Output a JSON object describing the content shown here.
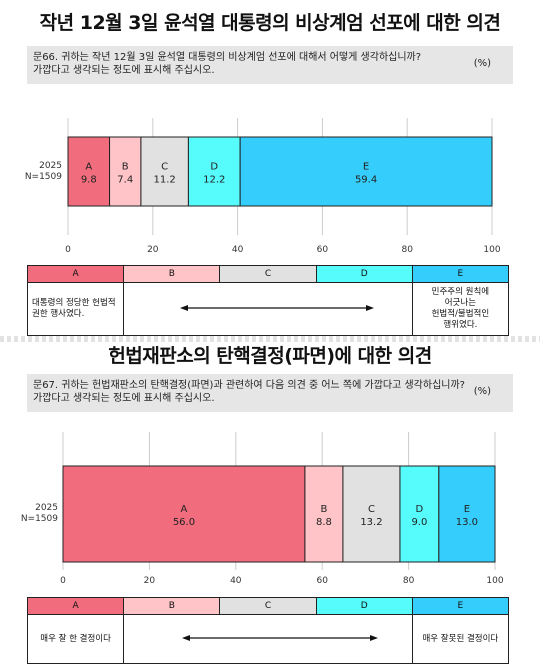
{
  "chart_data": [
    {
      "type": "bar",
      "orientation": "horizontal-stacked",
      "title": "작년 12월 3일 윤석열 대통령의 비상계엄 선포에 대한 의견",
      "question": [
        "문66. 귀하는 작년 12월 3일 윤석열 대통령의 비상계엄 선포에 대해서 어떻게 생각하십니까?",
        "가깝다고 생각되는 정도에 표시해 주십시오."
      ],
      "unit": "(%)",
      "row_label": [
        "2025",
        "N=1509"
      ],
      "xlim": [
        0,
        100
      ],
      "xticks": [
        "0",
        "20",
        "40",
        "60",
        "80",
        "100"
      ],
      "segments": [
        {
          "name": "A",
          "value": 9.8,
          "label": "9.8",
          "color": "#f16d7d"
        },
        {
          "name": "B",
          "value": 7.4,
          "label": "7.4",
          "color": "#ffc4c7"
        },
        {
          "name": "C",
          "value": 11.2,
          "label": "11.2",
          "color": "#e1e1e1"
        },
        {
          "name": "D",
          "value": 12.2,
          "label": "12.2",
          "color": "#56fbfb"
        },
        {
          "name": "E",
          "value": 59.4,
          "label": "59.4",
          "color": "#35cdfb"
        }
      ],
      "scale": {
        "headers": [
          "A",
          "B",
          "C",
          "D",
          "E"
        ],
        "left_desc": [
          "대통령의 정당한 헌법적",
          "권한 행사였다."
        ],
        "right_desc": [
          "민주주의 원칙에",
          "어긋나는",
          "헌법적/불법적인",
          "행위였다."
        ]
      }
    },
    {
      "type": "bar",
      "orientation": "horizontal-stacked",
      "title": "헌법재판소의 탄핵결정(파면)에 대한 의견",
      "question": [
        "문67. 귀하는 헌법재판소의 탄핵결정(파면)과 관련하여 다음 의견 중 어느 쪽에 가깝다고 생각하십니까?",
        "가깝다고 생각되는 정도에 표시해 주십시오."
      ],
      "unit": "(%)",
      "row_label": [
        "2025",
        "N=1509"
      ],
      "xlim": [
        0,
        100
      ],
      "xticks": [
        "0",
        "20",
        "40",
        "60",
        "80",
        "100"
      ],
      "segments": [
        {
          "name": "A",
          "value": 56.0,
          "label": "56.0",
          "color": "#f16d7d"
        },
        {
          "name": "B",
          "value": 8.8,
          "label": "8.8",
          "color": "#ffc4c7"
        },
        {
          "name": "C",
          "value": 13.2,
          "label": "13.2",
          "color": "#e1e1e1"
        },
        {
          "name": "D",
          "value": 9.0,
          "label": "9.0",
          "color": "#56fbfb"
        },
        {
          "name": "E",
          "value": 13.0,
          "label": "13.0",
          "color": "#35cdfb"
        }
      ],
      "scale": {
        "headers": [
          "A",
          "B",
          "C",
          "D",
          "E"
        ],
        "left_desc": [
          "매우 잘 한 결정이다"
        ],
        "right_desc": [
          "매우 잘못된 결정이다"
        ]
      }
    }
  ]
}
